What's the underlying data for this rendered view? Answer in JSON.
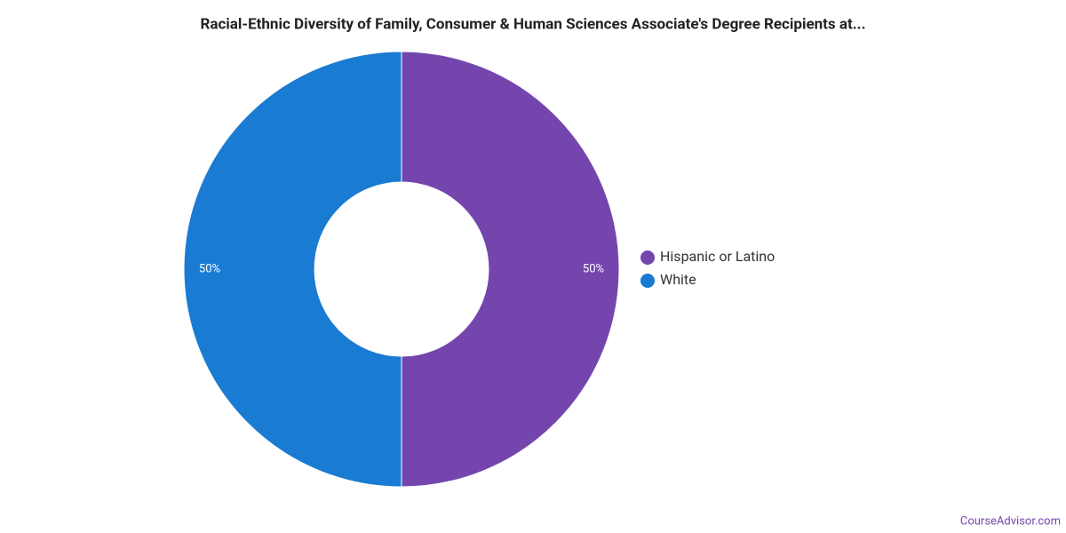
{
  "chart_data": {
    "type": "donut",
    "title": "Racial-Ethnic Diversity of Family, Consumer & Human Sciences Associate's Degree Recipients at...",
    "categories": [
      "Hispanic or Latino",
      "White"
    ],
    "values": [
      50,
      50
    ],
    "value_labels": [
      "50%",
      "50%"
    ],
    "colors": [
      "#7446ad",
      "#1a7bd3"
    ],
    "legend": "right",
    "watermark": "CourseAdvisor.com"
  }
}
